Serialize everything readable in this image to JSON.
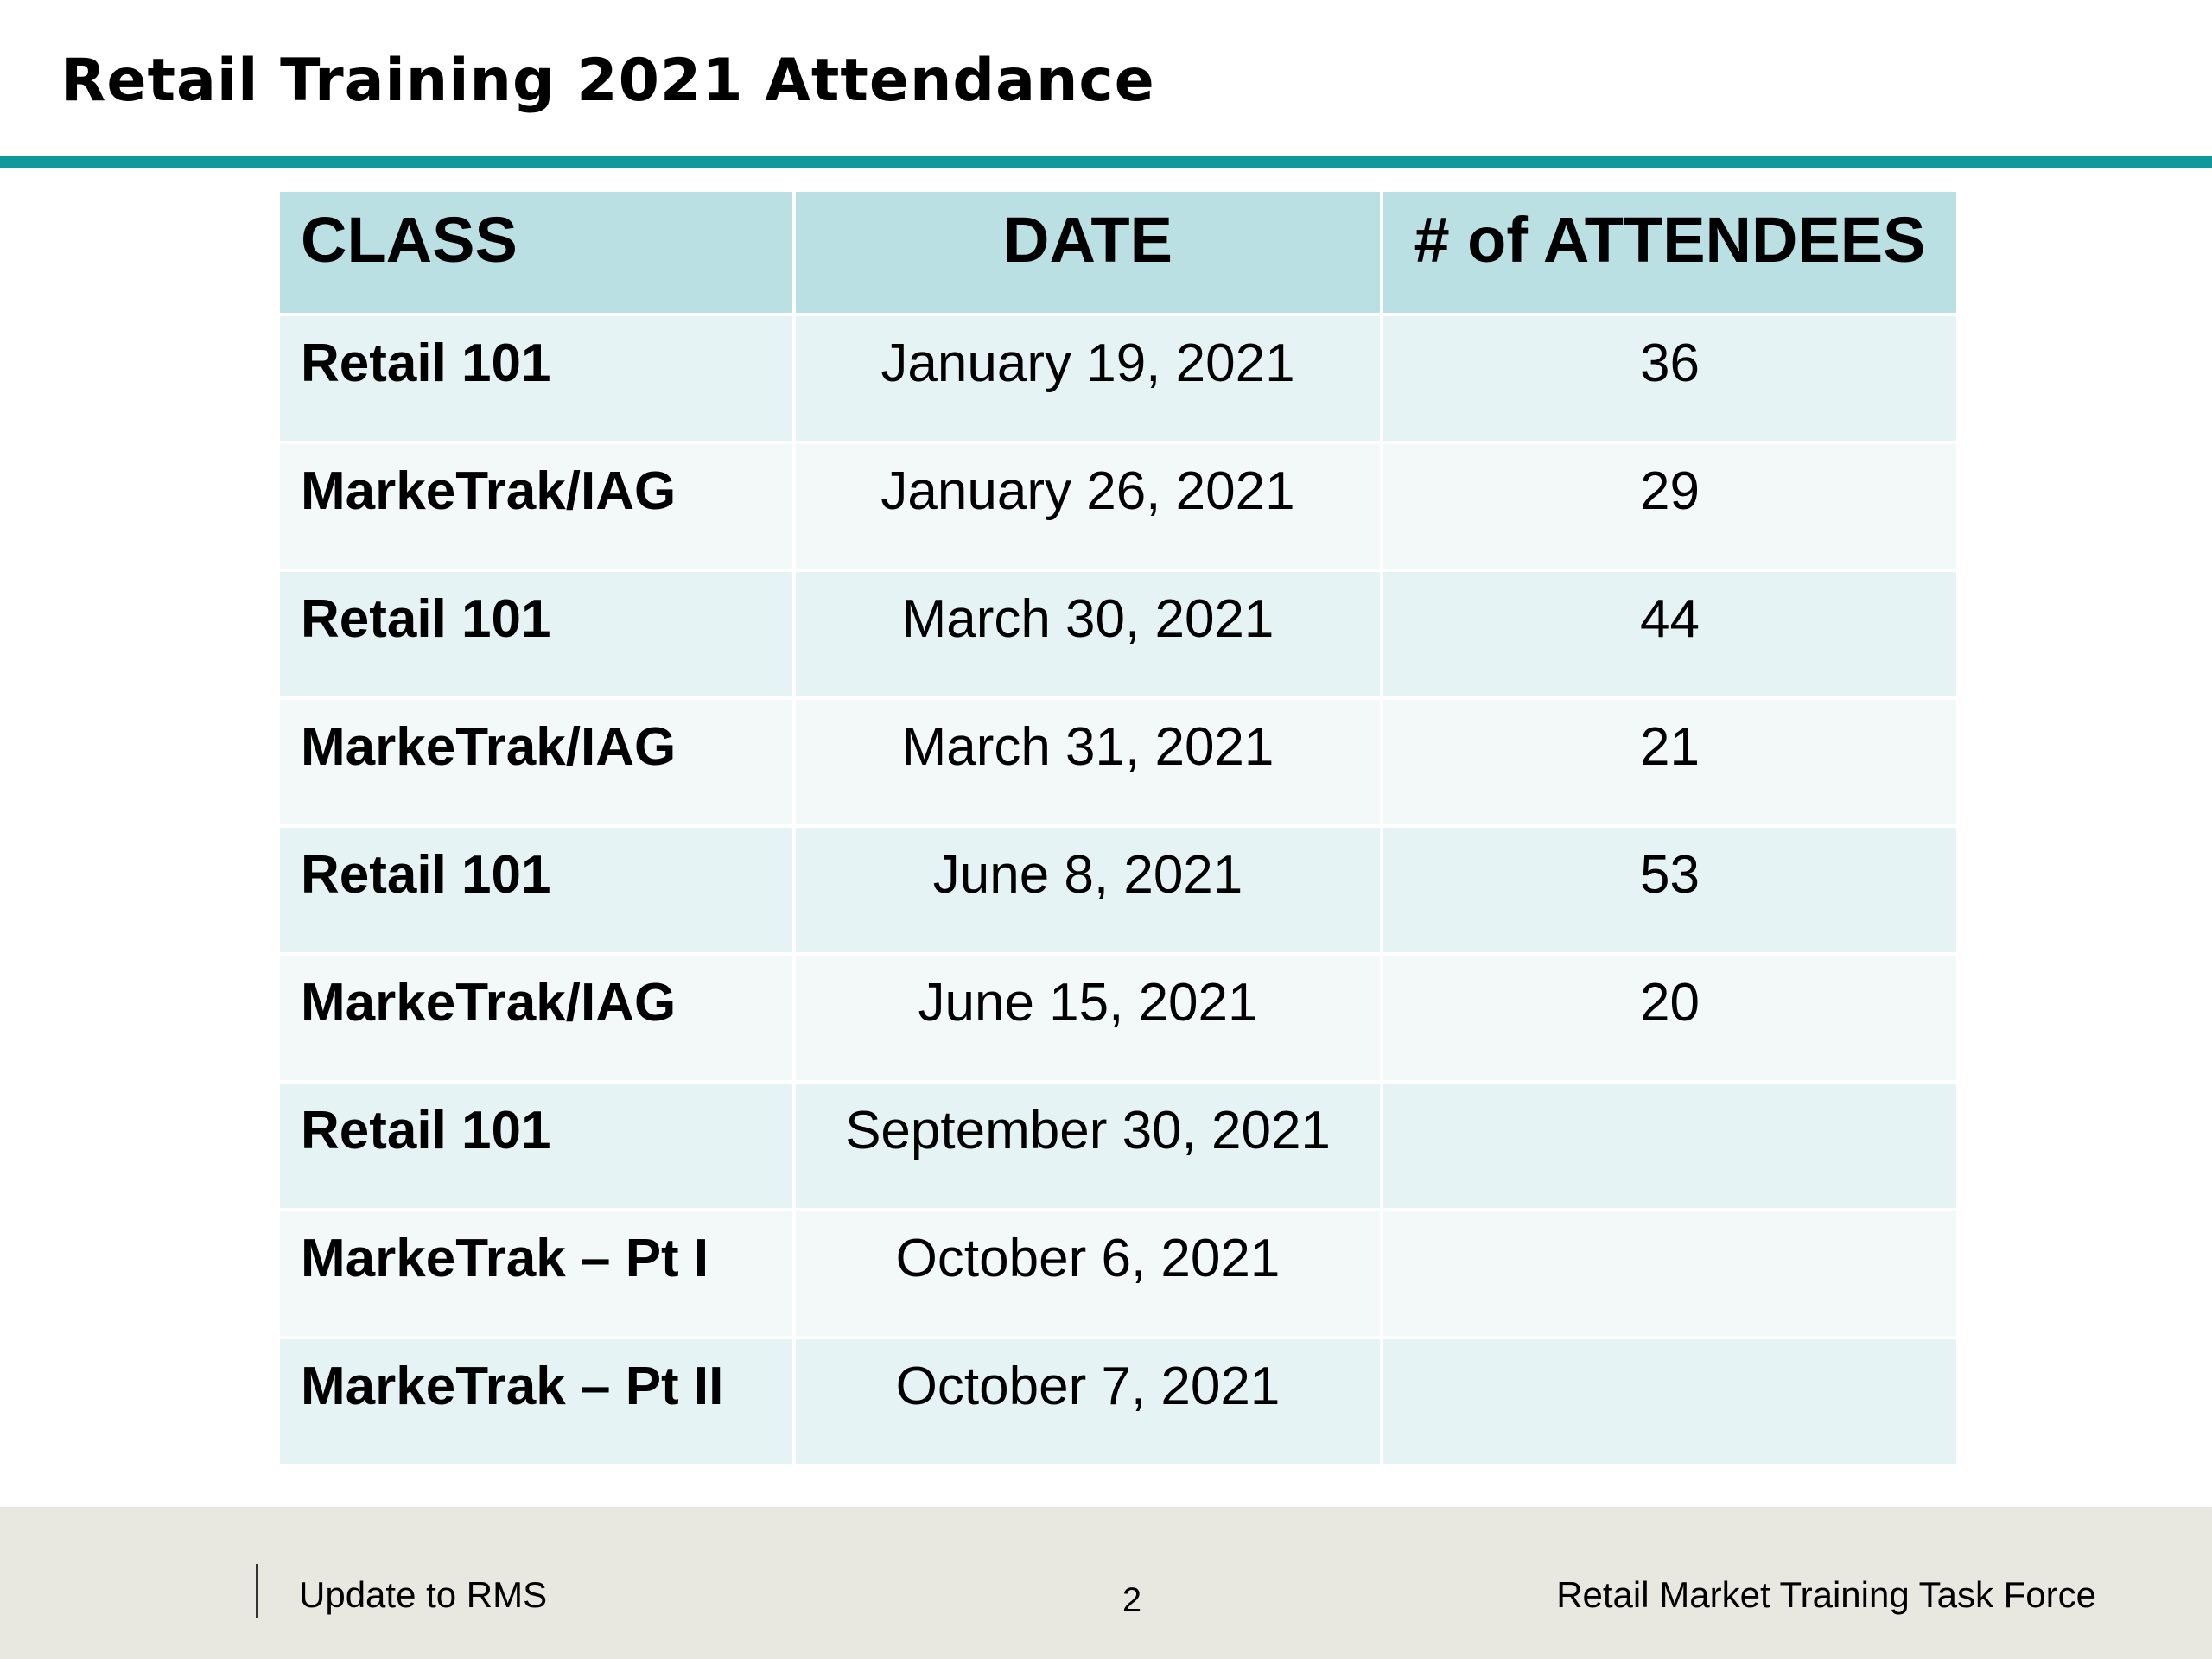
{
  "slide": {
    "title": "Retail Training 2021 Attendance"
  },
  "table": {
    "headers": [
      "CLASS",
      "DATE",
      "# of ATTENDEES"
    ],
    "rows": [
      {
        "class": "Retail 101",
        "date": "January 19, 2021",
        "attendees": "36"
      },
      {
        "class": "MarkeTrak/IAG",
        "date": "January 26, 2021",
        "attendees": "29"
      },
      {
        "class": "Retail 101",
        "date": "March 30, 2021",
        "attendees": "44"
      },
      {
        "class": "MarkeTrak/IAG",
        "date": "March 31, 2021",
        "attendees": "21"
      },
      {
        "class": "Retail 101",
        "date": "June 8, 2021",
        "attendees": "53"
      },
      {
        "class": "MarkeTrak/IAG",
        "date": "June 15, 2021",
        "attendees": "20"
      },
      {
        "class": "Retail 101",
        "date": "September 30, 2021",
        "attendees": ""
      },
      {
        "class": "MarkeTrak – Pt I",
        "date": "October 6, 2021",
        "attendees": ""
      },
      {
        "class": "MarkeTrak – Pt II",
        "date": "October 7, 2021",
        "attendees": ""
      }
    ]
  },
  "footer": {
    "left": "Update to RMS",
    "page_number": "2",
    "right": "Retail Market Training Task Force"
  },
  "colors": {
    "accent_rule": "#0e9a9a",
    "header_fill": "#bbe0e3",
    "row_fill_odd": "#e6f3f4",
    "row_fill_even": "#f3f8f9",
    "footer_fill": "#e8e8e1"
  }
}
